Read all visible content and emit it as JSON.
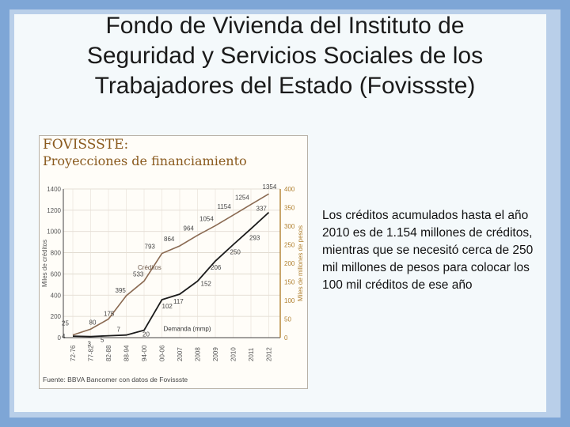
{
  "slide": {
    "title_lines": [
      "Fondo de Vivienda del Instituto de",
      "Seguridad y Servicios Sociales de los",
      "Trabajadores del Estado (Fovissste)"
    ],
    "note": "Los créditos acumulados hasta el año 2010 es de 1.154 millones de créditos, mientras que se necesitó cerca de 250 mil millones de pesos para colocar los 100 mil créditos de ese año"
  },
  "chart_data": {
    "type": "line",
    "title": "FOVISSSTE:",
    "subtitle": "Proyecciones de financiamiento",
    "ylabel": "Miles de créditos",
    "y2label": "Miles de millones de pesos",
    "source": "Fuente:   BBVA Bancomer con datos de Fovissste",
    "categories": [
      "72-76",
      "77-82",
      "82-88",
      "88-94",
      "94-00",
      "00-06",
      "2007",
      "2008",
      "2009",
      "2010",
      "2011",
      "2012"
    ],
    "ylim": [
      0,
      1400
    ],
    "yticks": [
      "0",
      "200",
      "400",
      "600",
      "800",
      "1000",
      "1200",
      "1400"
    ],
    "y2lim": [
      0,
      400
    ],
    "y2ticks": [
      "0",
      "50",
      "100",
      "150",
      "200",
      "250",
      "300",
      "350",
      "400"
    ],
    "series": [
      {
        "name": "Créditos",
        "axis": "left",
        "color": "#8a6a52",
        "values": [
          25,
          80,
          175,
          395,
          533,
          793,
          864,
          964,
          1054,
          1154,
          1254,
          1354
        ],
        "labels": [
          "25",
          "80",
          "175",
          "395",
          "533",
          "793",
          "864",
          "964",
          "1054",
          "1154",
          "1254",
          "1354"
        ]
      },
      {
        "name": "Demanda (mmp)",
        "axis": "right",
        "color": "#1b1b1b",
        "values": [
          4,
          3,
          5,
          7,
          20,
          102,
          117,
          152,
          206,
          250,
          293,
          337
        ],
        "labels": [
          "4",
          "3",
          "5",
          "7",
          "20",
          "102",
          "117",
          "152",
          "206",
          "250",
          "293",
          "337"
        ]
      }
    ],
    "grid": true
  }
}
